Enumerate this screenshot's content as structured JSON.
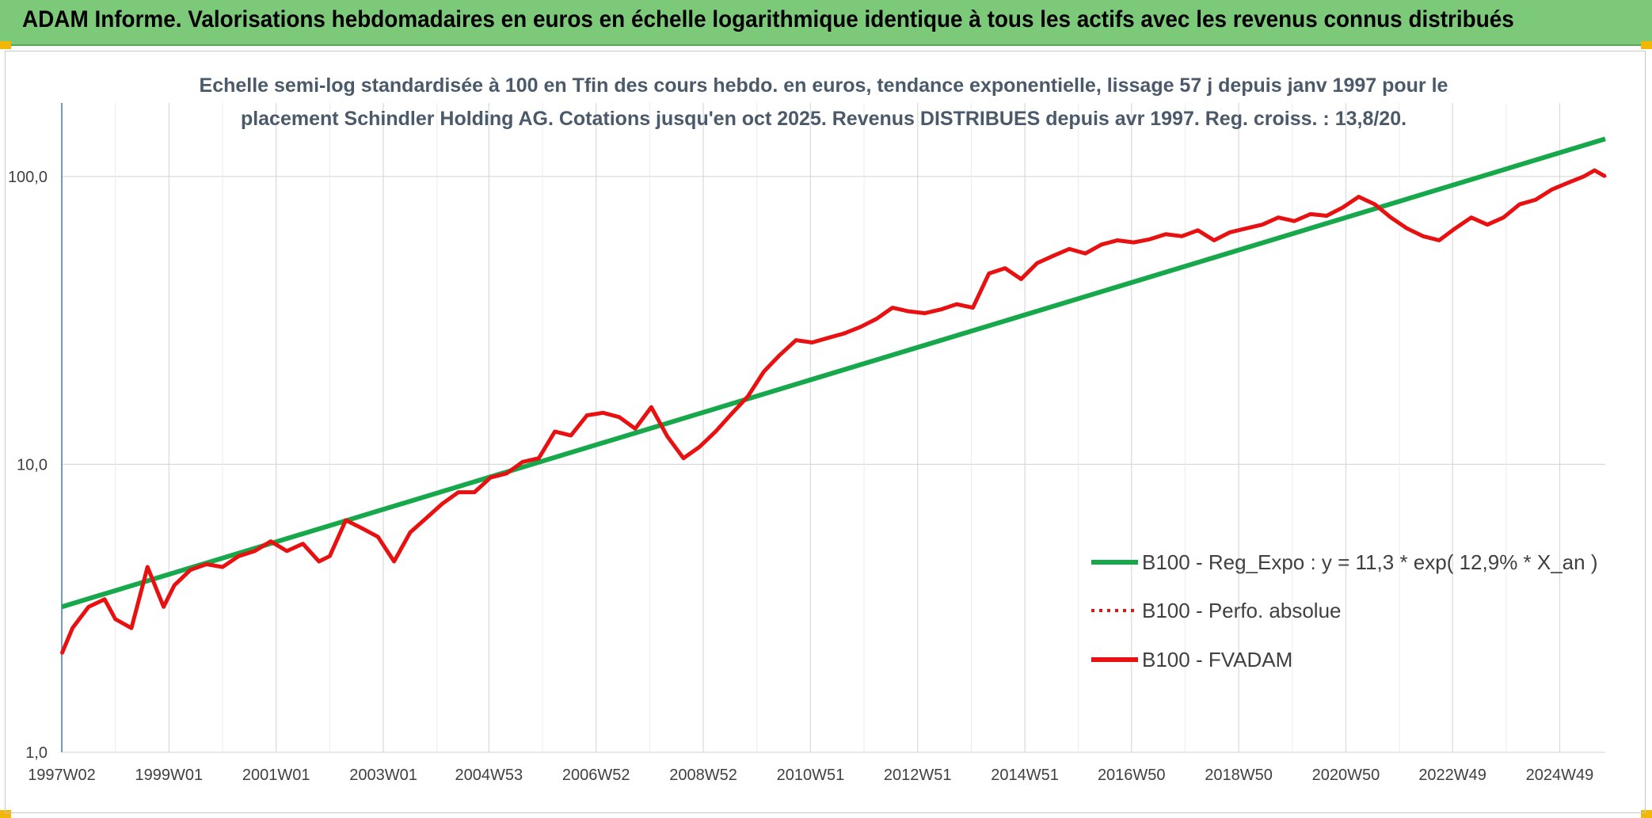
{
  "header": {
    "title": "ADAM Informe. Valorisations hebdomadaires en euros en échelle logarithmique identique à tous les actifs avec les revenus connus distribués"
  },
  "colors": {
    "header_bg": "#7dc97a",
    "accent_corner": "#f2b705",
    "trend_line": "#16a84a",
    "series_line": "#e81010"
  },
  "chart_data": {
    "type": "line",
    "title_lines": [
      "Echelle semi-log standardisée à 100 en Tfin des cours hebdo. en euros, tendance exponentielle, lissage 57 j depuis janv 1997 pour le",
      "placement Schindler Holding AG. Cotations jusqu'en oct 2025. Revenus DISTRIBUES depuis avr 1997. Reg. croiss. : 13,8/20."
    ],
    "y_scale": "log",
    "ylim": [
      1,
      180
    ],
    "y_ticks": [
      {
        "value": 1,
        "label": "1,0"
      },
      {
        "value": 10,
        "label": "10,0"
      },
      {
        "value": 100,
        "label": "100,0"
      }
    ],
    "xlim": [
      1997.0,
      2025.8
    ],
    "x_ticks": [
      {
        "value": 1997.0,
        "label": "1997W02"
      },
      {
        "value": 1999.0,
        "label": "1999W01"
      },
      {
        "value": 2001.0,
        "label": "2001W01"
      },
      {
        "value": 2003.0,
        "label": "2003W01"
      },
      {
        "value": 2004.97,
        "label": "2004W53"
      },
      {
        "value": 2006.97,
        "label": "2006W52"
      },
      {
        "value": 2008.97,
        "label": "2008W52"
      },
      {
        "value": 2010.97,
        "label": "2010W51"
      },
      {
        "value": 2012.97,
        "label": "2012W51"
      },
      {
        "value": 2014.97,
        "label": "2014W51"
      },
      {
        "value": 2016.96,
        "label": "2016W50"
      },
      {
        "value": 2018.96,
        "label": "2018W50"
      },
      {
        "value": 2020.96,
        "label": "2020W50"
      },
      {
        "value": 2022.95,
        "label": "2022W49"
      },
      {
        "value": 2024.95,
        "label": "2024W49"
      }
    ],
    "grid": true,
    "legend_position": "bottom-right",
    "series": [
      {
        "name": "B100 - Reg_Expo : y = 11,3 * exp( 12,9% * X_an )",
        "style": "solid-green",
        "x": [
          1997.0,
          2025.8
        ],
        "y": [
          3.2,
          135
        ]
      },
      {
        "name": "B100 - Perfo. absolue",
        "style": "dotted-red",
        "x": [],
        "y": []
      },
      {
        "name": "B100 - FVADAM",
        "style": "solid-red",
        "x": [
          1997.0,
          1997.2,
          1997.5,
          1997.8,
          1998.0,
          1998.3,
          1998.6,
          1998.9,
          1999.1,
          1999.4,
          1999.7,
          2000.0,
          2000.3,
          2000.6,
          2000.9,
          2001.2,
          2001.5,
          2001.8,
          2002.0,
          2002.3,
          2002.6,
          2002.9,
          2003.2,
          2003.5,
          2003.8,
          2004.1,
          2004.4,
          2004.7,
          2005.0,
          2005.3,
          2005.6,
          2005.9,
          2006.2,
          2006.5,
          2006.8,
          2007.1,
          2007.4,
          2007.7,
          2008.0,
          2008.3,
          2008.6,
          2008.9,
          2009.2,
          2009.5,
          2009.8,
          2010.1,
          2010.4,
          2010.7,
          2011.0,
          2011.3,
          2011.6,
          2011.9,
          2012.2,
          2012.5,
          2012.8,
          2013.1,
          2013.4,
          2013.7,
          2014.0,
          2014.3,
          2014.6,
          2014.9,
          2015.2,
          2015.5,
          2015.8,
          2016.1,
          2016.4,
          2016.7,
          2017.0,
          2017.3,
          2017.6,
          2017.9,
          2018.2,
          2018.5,
          2018.8,
          2019.1,
          2019.4,
          2019.7,
          2020.0,
          2020.3,
          2020.6,
          2020.9,
          2021.2,
          2021.5,
          2021.8,
          2022.1,
          2022.4,
          2022.7,
          2023.0,
          2023.3,
          2023.6,
          2023.9,
          2024.2,
          2024.5,
          2024.8,
          2025.1,
          2025.4,
          2025.6,
          2025.8
        ],
        "y": [
          2.2,
          2.7,
          3.2,
          3.4,
          2.9,
          2.7,
          4.4,
          3.2,
          3.8,
          4.3,
          4.5,
          4.4,
          4.8,
          5.0,
          5.4,
          5.0,
          5.3,
          4.6,
          4.8,
          6.4,
          6.0,
          5.6,
          4.6,
          5.8,
          6.5,
          7.3,
          8.0,
          8.0,
          9.0,
          9.3,
          10.2,
          10.5,
          13.0,
          12.6,
          14.8,
          15.1,
          14.6,
          13.3,
          15.8,
          12.5,
          10.5,
          11.5,
          13.0,
          15.0,
          17.2,
          21.0,
          24.0,
          27.0,
          26.5,
          27.5,
          28.5,
          30.0,
          32.0,
          35.0,
          34.0,
          33.5,
          34.5,
          36.0,
          35.0,
          46.0,
          48.0,
          44.0,
          50.0,
          53.0,
          56.0,
          54.0,
          58.0,
          60.0,
          59.0,
          60.5,
          63.0,
          62.0,
          65.0,
          60.0,
          64.0,
          66.0,
          68.0,
          72.0,
          70.0,
          74.0,
          73.0,
          78.0,
          85.0,
          80.0,
          72.0,
          66.0,
          62.0,
          60.0,
          66.0,
          72.0,
          68.0,
          72.0,
          80.0,
          83.0,
          90.0,
          95.0,
          100.0,
          105.0,
          100.0
        ]
      }
    ]
  }
}
